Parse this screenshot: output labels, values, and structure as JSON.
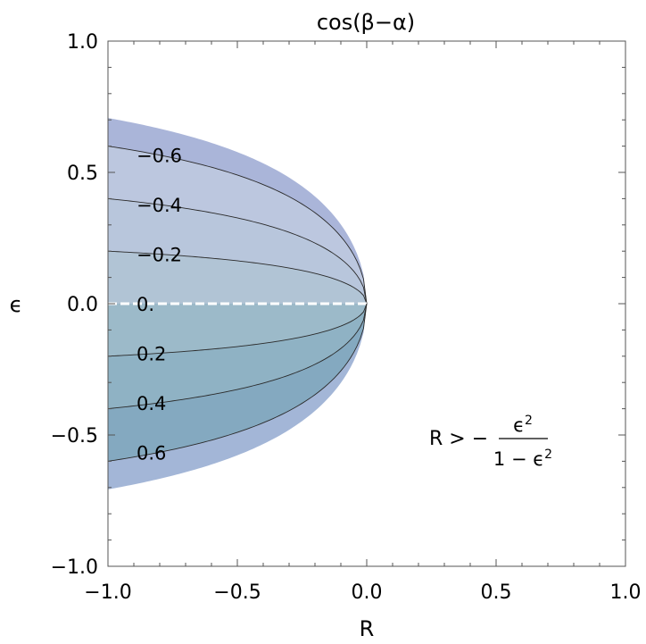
{
  "chart_data": {
    "type": "contour",
    "title": "cos(β−α)",
    "xlabel": "R",
    "ylabel": "ϵ",
    "xlim": [
      -1.0,
      1.0
    ],
    "ylim": [
      -1.0,
      1.0
    ],
    "xticks": [
      "−1.0",
      "−0.5",
      "0.0",
      "0.5",
      "1.0"
    ],
    "yticks": [
      "−1.0",
      "−0.5",
      "0.0",
      "0.5",
      "1.0"
    ],
    "region": "R > −ϵ²/(1−ϵ²), R ≤ 0",
    "contour_levels": [
      {
        "label": "−0.6",
        "value": -0.6,
        "epsilon_at_R_min": 0.6
      },
      {
        "label": "−0.4",
        "value": -0.4,
        "epsilon_at_R_min": 0.4
      },
      {
        "label": "−0.2",
        "value": -0.2,
        "epsilon_at_R_min": 0.2
      },
      {
        "label": "0.",
        "value": 0.0,
        "epsilon_at_R_min": 0.0
      },
      {
        "label": "0.2",
        "value": 0.2,
        "epsilon_at_R_min": -0.2
      },
      {
        "label": "0.4",
        "value": 0.4,
        "epsilon_at_R_min": -0.4
      },
      {
        "label": "0.6",
        "value": 0.6,
        "epsilon_at_R_min": -0.6
      }
    ],
    "constraint_label": {
      "lhs": "R > −",
      "numerator": "ϵ",
      "numerator_exp": "2",
      "denominator": "1 − ϵ",
      "denominator_exp": "2"
    },
    "colors": {
      "band_outer_top": "#aab5d9",
      "band_neg_06": "#bcc7df",
      "band_neg_04": "#b8c6dc",
      "band_neg_02": "#b1c4d5",
      "band_pos_0": "#9cbac9",
      "band_pos_02": "#8fb2c4",
      "band_pos_04": "#84a9c0",
      "band_outer_bottom": "#a3b6d7",
      "contour_line": "#2a2a2a",
      "zero_line": "#ffffff"
    }
  }
}
